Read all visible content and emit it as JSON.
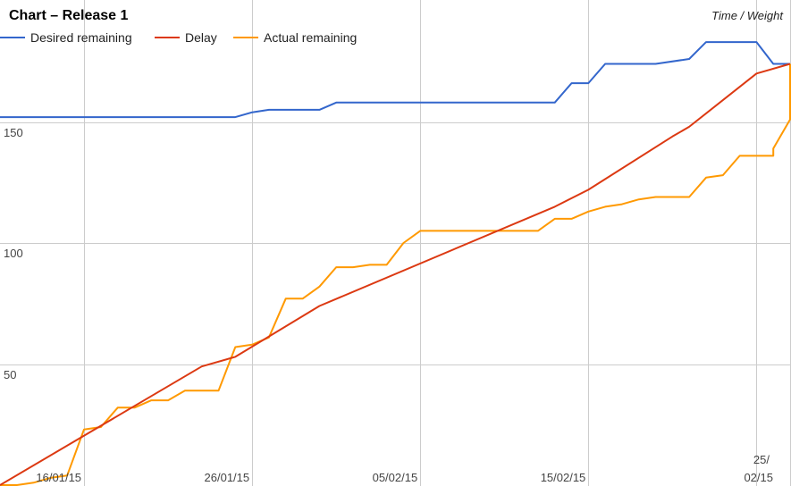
{
  "chart_data": {
    "type": "line",
    "title": "Chart – Release 1",
    "ylabel": "Time / Weight",
    "xlabel": "",
    "ylim": [
      0,
      200
    ],
    "y_ticks": [
      50,
      100,
      150
    ],
    "x_ticks": [
      {
        "date": "2015-01-16",
        "label": "16/01/15"
      },
      {
        "date": "2015-01-26",
        "label": "26/01/15"
      },
      {
        "date": "2015-02-05",
        "label": "05/02/15"
      },
      {
        "date": "2015-02-15",
        "label": "15/02/15"
      },
      {
        "date": "2015-02-25",
        "label": "25/02/15"
      }
    ],
    "xlim": [
      "2015-01-11",
      "2015-02-27"
    ],
    "grid": true,
    "legend_position": "top-left",
    "series": [
      {
        "name": "Desired remaining",
        "color": "#3366cc",
        "points": [
          [
            "2015-01-11",
            152
          ],
          [
            "2015-01-25",
            152
          ],
          [
            "2015-01-26",
            154
          ],
          [
            "2015-01-27",
            155
          ],
          [
            "2015-01-30",
            155
          ],
          [
            "2015-01-31",
            158
          ],
          [
            "2015-02-02",
            158
          ],
          [
            "2015-02-13",
            158
          ],
          [
            "2015-02-14",
            166
          ],
          [
            "2015-02-15",
            166
          ],
          [
            "2015-02-16",
            174
          ],
          [
            "2015-02-19",
            174
          ],
          [
            "2015-02-21",
            176
          ],
          [
            "2015-02-22",
            183
          ],
          [
            "2015-02-25",
            183
          ],
          [
            "2015-02-26",
            174
          ],
          [
            "2015-02-27",
            174
          ]
        ]
      },
      {
        "name": "Delay",
        "color": "#dc3912",
        "points": [
          [
            "2015-01-11",
            0
          ],
          [
            "2015-01-23",
            49
          ],
          [
            "2015-01-25",
            53
          ],
          [
            "2015-01-30",
            74
          ],
          [
            "2015-02-13",
            115
          ],
          [
            "2015-02-15",
            122
          ],
          [
            "2015-02-20",
            144
          ],
          [
            "2015-02-21",
            148
          ],
          [
            "2015-02-25",
            170
          ],
          [
            "2015-02-27",
            174
          ]
        ]
      },
      {
        "name": "Actual remaining",
        "color": "#ff9900",
        "points": [
          [
            "2015-01-11",
            0
          ],
          [
            "2015-01-12",
            0
          ],
          [
            "2015-01-13",
            1
          ],
          [
            "2015-01-14",
            3
          ],
          [
            "2015-01-15",
            4
          ],
          [
            "2015-01-16",
            23
          ],
          [
            "2015-01-17",
            24
          ],
          [
            "2015-01-18",
            32
          ],
          [
            "2015-01-19",
            32
          ],
          [
            "2015-01-20",
            35
          ],
          [
            "2015-01-21",
            35
          ],
          [
            "2015-01-22",
            39
          ],
          [
            "2015-01-24",
            39
          ],
          [
            "2015-01-25",
            57
          ],
          [
            "2015-01-26",
            58
          ],
          [
            "2015-01-27",
            61
          ],
          [
            "2015-01-28",
            77
          ],
          [
            "2015-01-29",
            77
          ],
          [
            "2015-01-30",
            82
          ],
          [
            "2015-01-31",
            90
          ],
          [
            "2015-02-01",
            90
          ],
          [
            "2015-02-02",
            91
          ],
          [
            "2015-02-03",
            91
          ],
          [
            "2015-02-04",
            100
          ],
          [
            "2015-02-05",
            105
          ],
          [
            "2015-02-12",
            105
          ],
          [
            "2015-02-13",
            110
          ],
          [
            "2015-02-14",
            110
          ],
          [
            "2015-02-15",
            113
          ],
          [
            "2015-02-16",
            115
          ],
          [
            "2015-02-17",
            116
          ],
          [
            "2015-02-18",
            118
          ],
          [
            "2015-02-19",
            119
          ],
          [
            "2015-02-21",
            119
          ],
          [
            "2015-02-22",
            127
          ],
          [
            "2015-02-23",
            128
          ],
          [
            "2015-02-24",
            136
          ],
          [
            "2015-02-26",
            136
          ],
          [
            "2015-02-26",
            139
          ],
          [
            "2015-02-27",
            151
          ],
          [
            "2015-02-27",
            174
          ]
        ]
      }
    ]
  }
}
